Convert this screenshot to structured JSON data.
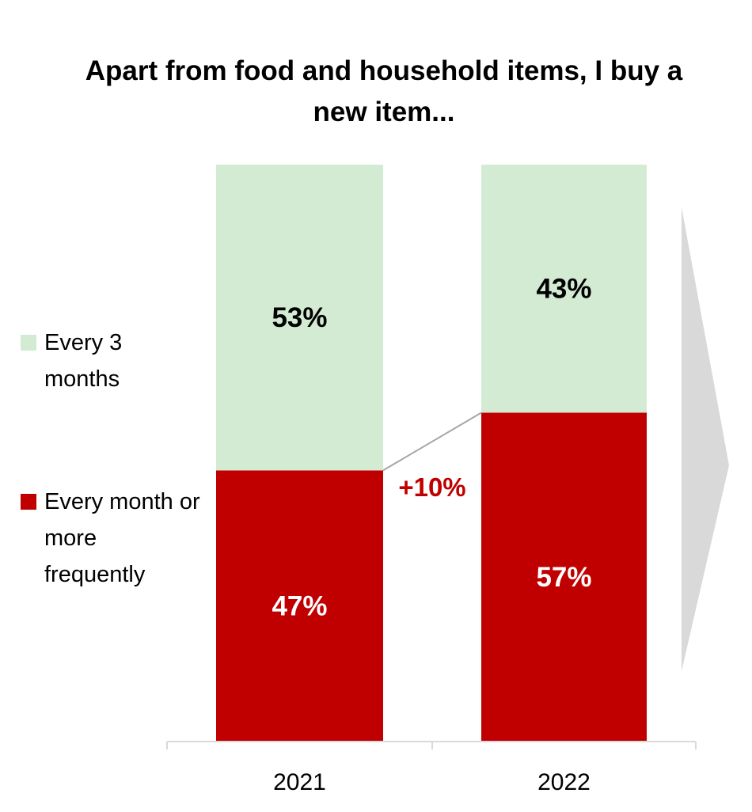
{
  "chart_data": {
    "type": "bar",
    "stacked": true,
    "title": "Apart from food and household items, I buy a new item...",
    "categories": [
      "2021",
      "2022"
    ],
    "series": [
      {
        "name": "Every month or more frequently",
        "values": [
          47,
          57
        ],
        "labels": [
          "47%",
          "57%"
        ],
        "color": "#C00000",
        "label_color": "#FFFFFF"
      },
      {
        "name": "Every 3 months",
        "values": [
          53,
          43
        ],
        "labels": [
          "53%",
          "43%"
        ],
        "color": "#D4EBD3",
        "label_color": "#000000"
      }
    ],
    "annotation": {
      "text": "+10%",
      "color": "#C00000"
    },
    "ylim": [
      0,
      100
    ],
    "xlabel": "",
    "ylabel": "",
    "legend": "left",
    "grid": false
  },
  "legend_items": [
    {
      "label": "Every 3 months",
      "color": "#D4EBD3"
    },
    {
      "label": "Every month or more frequently",
      "color": "#C00000"
    }
  ],
  "arrow_color": "#D9D9D9",
  "connector_color": "#A6A6A6"
}
